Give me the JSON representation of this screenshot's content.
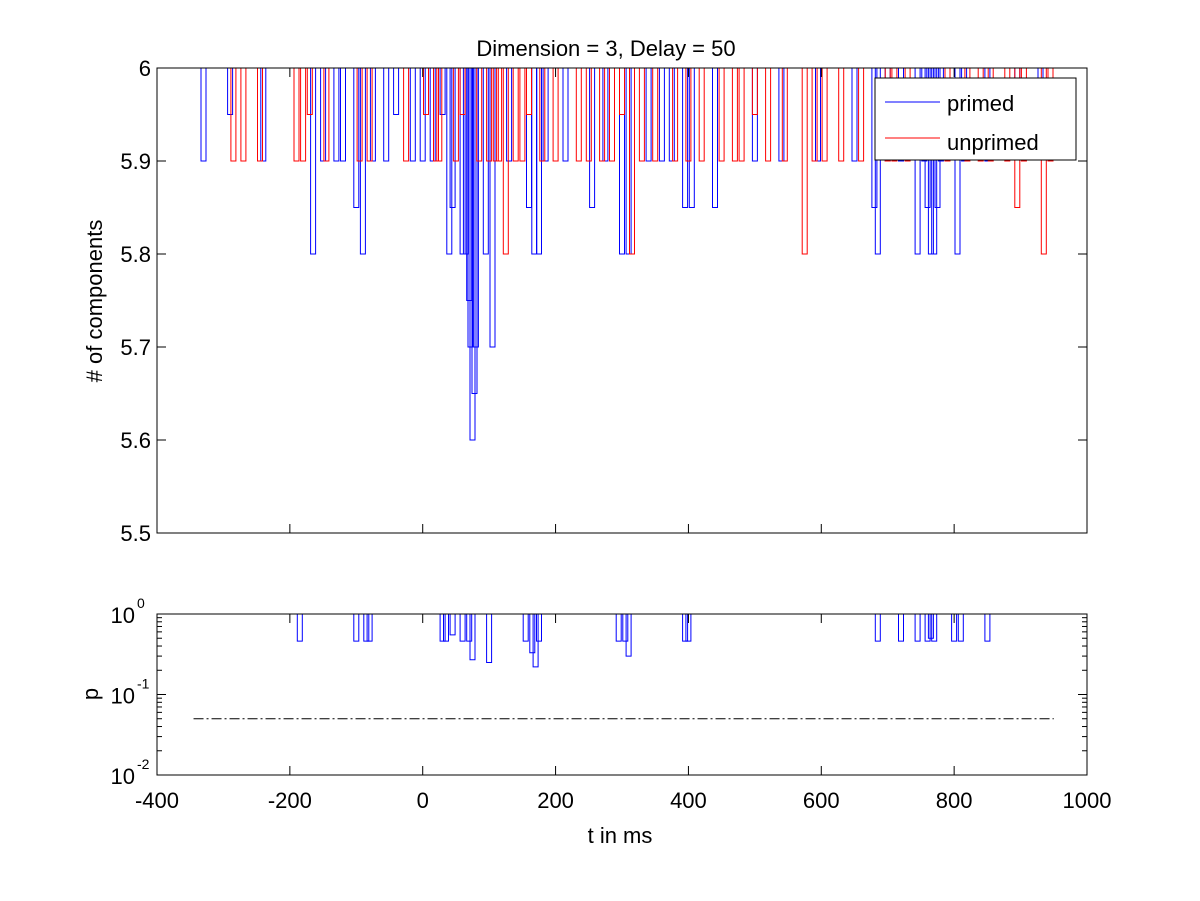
{
  "chart_data": [
    {
      "type": "line",
      "title": "Dimension  = 3, Delay = 50",
      "xlabel": "",
      "ylabel": "# of components",
      "xlim": [
        -400,
        1000
      ],
      "ylim": [
        5.5,
        6
      ],
      "yticks": [
        "5.5",
        "5.6",
        "5.7",
        "5.8",
        "5.9",
        "6"
      ],
      "show_x_ticklabels": false,
      "grid": false,
      "legend_position": "top-right",
      "baseline": 6,
      "series": [
        {
          "name": "primed",
          "color": "#0000ff",
          "dips": [
            [
              -330,
              5.9
            ],
            [
              -290,
              5.95
            ],
            [
              -240,
              5.9
            ],
            [
              -165,
              5.8
            ],
            [
              -150,
              5.9
            ],
            [
              -130,
              5.9
            ],
            [
              -120,
              5.9
            ],
            [
              -100,
              5.85
            ],
            [
              -90,
              5.8
            ],
            [
              -75,
              5.9
            ],
            [
              -55,
              5.9
            ],
            [
              -40,
              5.95
            ],
            [
              -15,
              5.9
            ],
            [
              0,
              5.9
            ],
            [
              15,
              5.9
            ],
            [
              30,
              5.95
            ],
            [
              40,
              5.8
            ],
            [
              45,
              5.85
            ],
            [
              60,
              5.8
            ],
            [
              65,
              5.8
            ],
            [
              70,
              5.75
            ],
            [
              72,
              5.7
            ],
            [
              75,
              5.6
            ],
            [
              78,
              5.65
            ],
            [
              80,
              5.7
            ],
            [
              95,
              5.8
            ],
            [
              105,
              5.7
            ],
            [
              130,
              5.9
            ],
            [
              160,
              5.85
            ],
            [
              168,
              5.8
            ],
            [
              175,
              5.8
            ],
            [
              185,
              5.9
            ],
            [
              215,
              5.9
            ],
            [
              255,
              5.85
            ],
            [
              275,
              5.9
            ],
            [
              300,
              5.8
            ],
            [
              310,
              5.8
            ],
            [
              340,
              5.9
            ],
            [
              360,
              5.9
            ],
            [
              375,
              5.9
            ],
            [
              395,
              5.85
            ],
            [
              405,
              5.85
            ],
            [
              440,
              5.85
            ],
            [
              500,
              5.9
            ],
            [
              540,
              5.9
            ],
            [
              595,
              5.9
            ],
            [
              650,
              5.9
            ],
            [
              680,
              5.85
            ],
            [
              685,
              5.8
            ],
            [
              700,
              5.9
            ],
            [
              720,
              5.9
            ],
            [
              745,
              5.8
            ],
            [
              755,
              5.9
            ],
            [
              760,
              5.85
            ],
            [
              765,
              5.8
            ],
            [
              770,
              5.8
            ],
            [
              775,
              5.85
            ],
            [
              780,
              5.9
            ],
            [
              805,
              5.8
            ],
            [
              815,
              5.9
            ],
            [
              850,
              5.9
            ],
            [
              895,
              5.95
            ],
            [
              930,
              5.95
            ]
          ]
        },
        {
          "name": "unprimed",
          "color": "#ff0000",
          "dips": [
            [
              -285,
              5.9
            ],
            [
              -270,
              5.9
            ],
            [
              -245,
              5.9
            ],
            [
              -190,
              5.9
            ],
            [
              -180,
              5.9
            ],
            [
              -170,
              5.95
            ],
            [
              -145,
              5.9
            ],
            [
              -95,
              5.9
            ],
            [
              -80,
              5.9
            ],
            [
              -25,
              5.9
            ],
            [
              5,
              5.95
            ],
            [
              20,
              5.9
            ],
            [
              25,
              5.9
            ],
            [
              50,
              5.9
            ],
            [
              60,
              5.95
            ],
            [
              85,
              5.9
            ],
            [
              100,
              5.9
            ],
            [
              110,
              5.9
            ],
            [
              115,
              5.9
            ],
            [
              125,
              5.8
            ],
            [
              140,
              5.9
            ],
            [
              150,
              5.9
            ],
            [
              160,
              5.95
            ],
            [
              180,
              5.9
            ],
            [
              200,
              5.9
            ],
            [
              235,
              5.9
            ],
            [
              250,
              5.9
            ],
            [
              270,
              5.9
            ],
            [
              285,
              5.9
            ],
            [
              300,
              5.95
            ],
            [
              315,
              5.8
            ],
            [
              330,
              5.9
            ],
            [
              350,
              5.9
            ],
            [
              380,
              5.9
            ],
            [
              400,
              5.9
            ],
            [
              420,
              5.9
            ],
            [
              450,
              5.9
            ],
            [
              470,
              5.9
            ],
            [
              480,
              5.9
            ],
            [
              500,
              5.95
            ],
            [
              520,
              5.9
            ],
            [
              545,
              5.9
            ],
            [
              575,
              5.8
            ],
            [
              590,
              5.9
            ],
            [
              605,
              5.9
            ],
            [
              630,
              5.9
            ],
            [
              660,
              5.9
            ],
            [
              700,
              5.9
            ],
            [
              710,
              5.9
            ],
            [
              730,
              5.9
            ],
            [
              790,
              5.9
            ],
            [
              820,
              5.9
            ],
            [
              840,
              5.9
            ],
            [
              855,
              5.9
            ],
            [
              880,
              5.9
            ],
            [
              895,
              5.85
            ],
            [
              905,
              5.9
            ],
            [
              935,
              5.8
            ],
            [
              945,
              5.9
            ]
          ]
        }
      ]
    },
    {
      "type": "line",
      "xlabel": "t in ms",
      "ylabel": "p",
      "xlim": [
        -400,
        1000
      ],
      "ylim": [
        0.01,
        1
      ],
      "y_scale": "log",
      "xticks": [
        "-400",
        "-200",
        "0",
        "200",
        "400",
        "600",
        "800",
        "1000"
      ],
      "yticks": [
        {
          "base": "10",
          "exp": "-2"
        },
        {
          "base": "10",
          "exp": "-1"
        },
        {
          "base": "10",
          "exp": "0"
        }
      ],
      "grid": false,
      "threshold": {
        "value": 0.05,
        "from": -345,
        "to": 950,
        "style": "dash-dot",
        "color": "#000000"
      },
      "series": [
        {
          "color": "#0000ff",
          "dips": [
            [
              -185,
              0.46
            ],
            [
              -100,
              0.46
            ],
            [
              -85,
              0.46
            ],
            [
              -80,
              0.46
            ],
            [
              30,
              0.46
            ],
            [
              35,
              0.46
            ],
            [
              45,
              0.55
            ],
            [
              60,
              0.46
            ],
            [
              70,
              0.46
            ],
            [
              75,
              0.27
            ],
            [
              100,
              0.25
            ],
            [
              155,
              0.46
            ],
            [
              165,
              0.33
            ],
            [
              170,
              0.22
            ],
            [
              175,
              0.46
            ],
            [
              295,
              0.46
            ],
            [
              305,
              0.46
            ],
            [
              310,
              0.3
            ],
            [
              395,
              0.46
            ],
            [
              400,
              0.46
            ],
            [
              685,
              0.46
            ],
            [
              720,
              0.46
            ],
            [
              745,
              0.46
            ],
            [
              760,
              0.46
            ],
            [
              765,
              0.5
            ],
            [
              770,
              0.46
            ],
            [
              800,
              0.46
            ],
            [
              810,
              0.46
            ],
            [
              850,
              0.46
            ]
          ]
        }
      ]
    }
  ]
}
